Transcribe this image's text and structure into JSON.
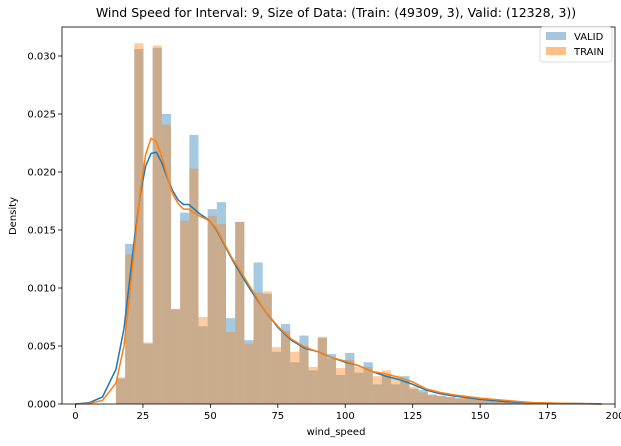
{
  "chart_data": {
    "type": "histogram-kde",
    "title": "Wind Speed for Interval: 9, Size of Data: (Train: (49309, 3), Valid: (12328, 3))",
    "xlabel": "wind_speed",
    "ylabel": "Density",
    "xlim": [
      -5,
      200
    ],
    "ylim": [
      0,
      0.0325
    ],
    "xticks": [
      0,
      25,
      50,
      75,
      100,
      125,
      150,
      175,
      200
    ],
    "yticks": [
      0.0,
      0.005,
      0.01,
      0.015,
      0.02,
      0.025,
      0.03
    ],
    "ytick_labels": [
      "0.000",
      "0.005",
      "0.010",
      "0.015",
      "0.020",
      "0.025",
      "0.030"
    ],
    "legend_position": "top-right",
    "grid": false,
    "bins": {
      "start": 15,
      "width": 3.4,
      "valid": [
        0.0022,
        0.0138,
        0.0306,
        0.0052,
        0.0307,
        0.025,
        0.0082,
        0.0165,
        0.0232,
        0.0067,
        0.0168,
        0.0174,
        0.0074,
        0.0157,
        0.0055,
        0.0122,
        0.0095,
        0.0045,
        0.0069,
        0.0036,
        0.0059,
        0.0029,
        0.0057,
        0.0043,
        0.0025,
        0.0044,
        0.0027,
        0.0036,
        0.0017,
        0.0025,
        0.0017,
        0.0024,
        0.0013,
        0.0012,
        0.0008,
        0.0007,
        0.0006,
        0.0005,
        0.0005,
        0.0004,
        0.0004,
        0.0003,
        0.0002,
        0.0002,
        0.0002,
        0.0001,
        0.0001,
        0.0001,
        0.0001,
        0.0001,
        0.0001,
        0.0001
      ],
      "train": [
        0.0023,
        0.0129,
        0.0311,
        0.0053,
        0.0309,
        0.0241,
        0.0081,
        0.0158,
        0.0203,
        0.0075,
        0.0162,
        0.0155,
        0.0062,
        0.0157,
        0.0052,
        0.0096,
        0.0097,
        0.0049,
        0.0063,
        0.0045,
        0.005,
        0.0032,
        0.0058,
        0.0039,
        0.0031,
        0.0038,
        0.0032,
        0.0032,
        0.0024,
        0.0029,
        0.0024,
        0.002,
        0.0015,
        0.001,
        0.0008,
        0.0007,
        0.0006,
        0.0005,
        0.0005,
        0.0004,
        0.0004,
        0.0003,
        0.0002,
        0.0002,
        0.0002,
        0.0001,
        0.0001,
        0.0001,
        0.0001,
        0.0001,
        0.0001,
        0.0001
      ]
    },
    "series": [
      {
        "name": "VALID",
        "color": "#1f77b4",
        "hist_color": "#a6c5df",
        "kde_x": [
          0,
          5,
          10,
          15,
          18,
          20,
          22,
          24,
          26,
          28,
          30,
          32,
          34,
          36,
          38,
          40,
          42,
          44,
          46,
          48,
          50,
          52,
          55,
          58,
          60,
          65,
          70,
          75,
          80,
          85,
          90,
          95,
          100,
          105,
          110,
          115,
          120,
          125,
          130,
          135,
          140,
          150,
          160,
          170,
          180,
          190,
          195
        ],
        "kde_y": [
          0.0,
          0.0001,
          0.0006,
          0.003,
          0.0065,
          0.0105,
          0.0145,
          0.018,
          0.0205,
          0.0216,
          0.0217,
          0.0208,
          0.0195,
          0.0184,
          0.0176,
          0.0172,
          0.0172,
          0.0168,
          0.0164,
          0.0161,
          0.0157,
          0.0151,
          0.0138,
          0.0125,
          0.0117,
          0.0098,
          0.0081,
          0.0066,
          0.0055,
          0.0048,
          0.0045,
          0.004,
          0.0036,
          0.0033,
          0.0028,
          0.0024,
          0.0021,
          0.0017,
          0.0012,
          0.0009,
          0.0007,
          0.0004,
          0.0002,
          0.0001,
          5e-05,
          2e-05,
          0.0
        ]
      },
      {
        "name": "TRAIN",
        "color": "#ff7f0e",
        "hist_color": "#ffbf86",
        "kde_x": [
          0,
          5,
          10,
          15,
          18,
          20,
          22,
          24,
          26,
          28,
          30,
          32,
          34,
          36,
          38,
          40,
          42,
          44,
          46,
          48,
          50,
          52,
          55,
          58,
          60,
          65,
          70,
          75,
          80,
          85,
          90,
          95,
          100,
          105,
          110,
          115,
          120,
          125,
          130,
          135,
          140,
          150,
          160,
          170,
          180,
          190,
          195
        ],
        "kde_y": [
          0.0,
          5e-05,
          0.0003,
          0.0018,
          0.005,
          0.0092,
          0.0138,
          0.0182,
          0.0215,
          0.0229,
          0.0226,
          0.0213,
          0.0196,
          0.0181,
          0.0173,
          0.0168,
          0.0168,
          0.0165,
          0.0162,
          0.016,
          0.0157,
          0.0152,
          0.0139,
          0.0126,
          0.0119,
          0.01,
          0.0081,
          0.0067,
          0.0056,
          0.0049,
          0.0045,
          0.004,
          0.0037,
          0.0033,
          0.0028,
          0.0026,
          0.0023,
          0.0019,
          0.0013,
          0.001,
          0.0008,
          0.0005,
          0.0003,
          0.0001,
          6e-05,
          2e-05,
          0.0
        ]
      }
    ]
  }
}
